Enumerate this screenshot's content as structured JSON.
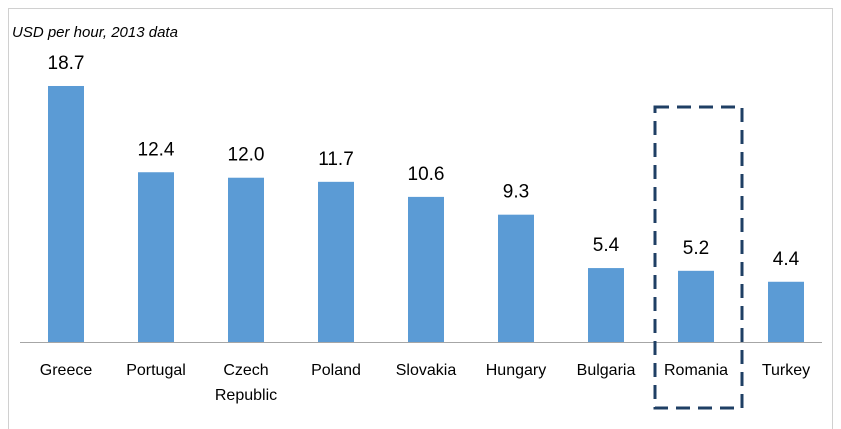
{
  "chart_data": {
    "type": "bar",
    "subtitle": "USD per hour, 2013 data",
    "categories": [
      "Greece",
      "Portugal",
      "Czech Republic",
      "Poland",
      "Slovakia",
      "Hungary",
      "Bulgaria",
      "Romania",
      "Turkey"
    ],
    "values": [
      18.7,
      12.4,
      12.0,
      11.7,
      10.6,
      9.3,
      5.4,
      5.2,
      4.4
    ],
    "value_labels": [
      "18.7",
      "12.4",
      "12.0",
      "11.7",
      "10.6",
      "9.3",
      "5.4",
      "5.2",
      "4.4"
    ],
    "color": "#5b9bd5"
  }
}
